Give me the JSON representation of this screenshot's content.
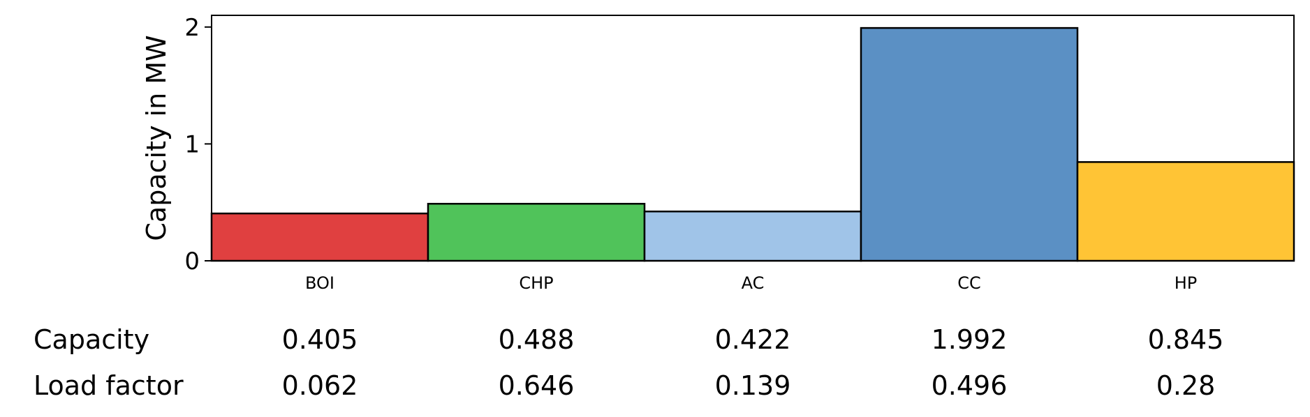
{
  "chart_data": {
    "type": "bar",
    "ylabel": "Capacity in MW",
    "ylim": [
      0,
      2.1
    ],
    "yticks": [
      0,
      1,
      2
    ],
    "grid": false,
    "categories": [
      "BOI",
      "CHP",
      "AC",
      "CC",
      "HP"
    ],
    "values": [
      0.405,
      0.488,
      0.422,
      1.992,
      0.845
    ],
    "colors": [
      "#e04040",
      "#50c35a",
      "#a0c4e8",
      "#5b90c4",
      "#ffc435"
    ],
    "table": {
      "rows": [
        {
          "label": "Capacity",
          "values": [
            "0.405",
            "0.488",
            "0.422",
            "1.992",
            "0.845"
          ]
        },
        {
          "label": "Load factor",
          "values": [
            "0.062",
            "0.646",
            "0.139",
            "0.496",
            "0.28"
          ]
        }
      ]
    }
  }
}
